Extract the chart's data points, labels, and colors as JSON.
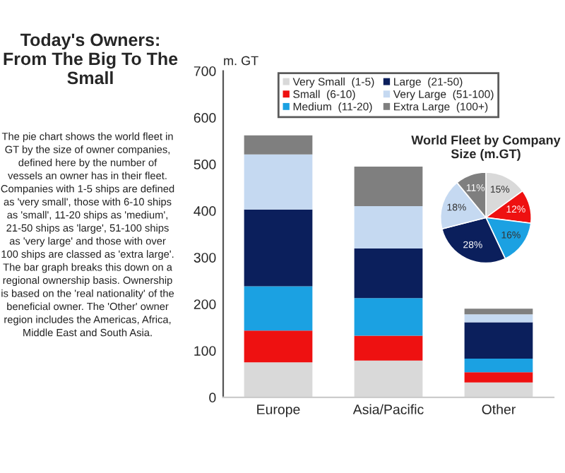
{
  "chart_data": [
    {
      "type": "bar",
      "title": "Today's Owners: From The Big To The Small",
      "ylabel": "m. GT",
      "stacked": true,
      "annotations": [
        "The pie chart shows the world fleet in GT by the size of owner companies, defined here by the number of vessels an owner has in their fleet. Companies with 1-5 ships are defined as 'very small', those with 6-10 ships as 'small', 11-20 ships as 'medium', 21-50 ships as 'large', 51-100 ships as 'very large' and those with over 100 ships are classed as 'extra large'. The bar graph breaks this down on a regional ownership basis. Ownership is based on the 'real nationality' of the beneficial owner. The 'Other' owner region includes the Americas, Africa, Middle East and South Asia."
      ],
      "categories": [
        "Europe",
        "Asia/Pacific",
        "Other"
      ],
      "series": [
        {
          "name": "Very Small  (1-5)",
          "color": "#d9d9d9",
          "values": [
            75,
            79,
            32
          ]
        },
        {
          "name": "Small  (6-10)",
          "color": "#ee1111",
          "values": [
            68,
            53,
            22
          ]
        },
        {
          "name": "Medium  (11-20)",
          "color": "#1ba1e2",
          "values": [
            95,
            81,
            29
          ]
        },
        {
          "name": "Large  (21-50)",
          "color": "#0b1f5c",
          "values": [
            165,
            106,
            78
          ]
        },
        {
          "name": "Very Large  (51-100)",
          "color": "#c5d9f1",
          "values": [
            118,
            91,
            17
          ]
        },
        {
          "name": "Extra Large  (100+)",
          "color": "#7f7f7f",
          "values": [
            41,
            85,
            12
          ]
        }
      ],
      "ylim": [
        0,
        700
      ],
      "yticks": [
        0,
        100,
        200,
        300,
        400,
        500,
        600,
        700
      ],
      "grid": false,
      "legend": "top"
    },
    {
      "type": "pie",
      "title": "World Fleet by Company Size (m.GT)",
      "categories": [
        null,
        null,
        null,
        null,
        null,
        null
      ],
      "values": [
        15,
        12,
        16,
        28,
        18,
        11
      ],
      "colors": [
        "#d9d9d9",
        "#ee1111",
        "#1ba1e2",
        "#0b1f5c",
        "#c5d9f1",
        "#7f7f7f"
      ],
      "value_labels": [
        "15%",
        "12%",
        "16%",
        "28%",
        "18%",
        "11%"
      ]
    }
  ]
}
